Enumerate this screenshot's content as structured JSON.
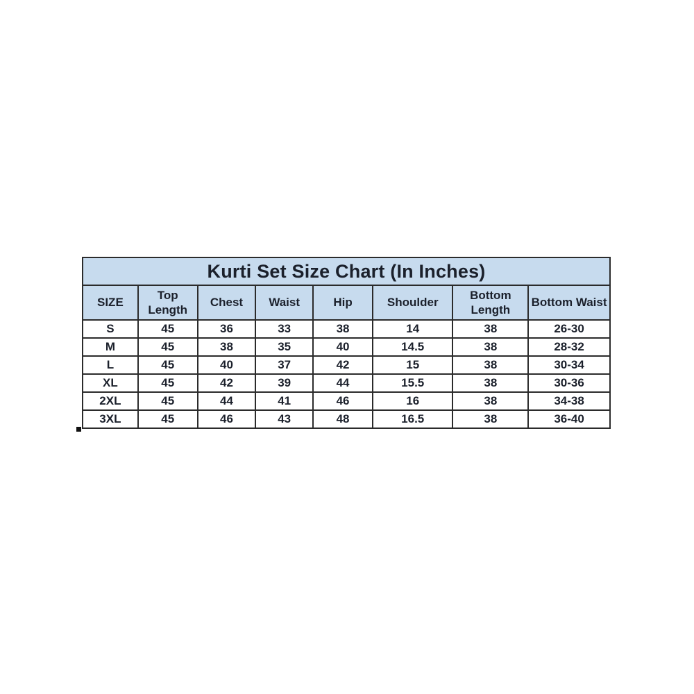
{
  "chart_data": {
    "type": "table",
    "title": "Kurti Set Size Chart (In Inches)",
    "columns": [
      "SIZE",
      "Top Length",
      "Chest",
      "Waist",
      "Hip",
      "Shoulder",
      "Bottom Length",
      "Bottom Waist"
    ],
    "rows": [
      [
        "S",
        "45",
        "36",
        "33",
        "38",
        "14",
        "38",
        "26-30"
      ],
      [
        "M",
        "45",
        "38",
        "35",
        "40",
        "14.5",
        "38",
        "28-32"
      ],
      [
        "L",
        "45",
        "40",
        "37",
        "42",
        "15",
        "38",
        "30-34"
      ],
      [
        "XL",
        "45",
        "42",
        "39",
        "44",
        "15.5",
        "38",
        "30-36"
      ],
      [
        "2XL",
        "45",
        "44",
        "41",
        "46",
        "16",
        "38",
        "34-38"
      ],
      [
        "3XL",
        "45",
        "46",
        "43",
        "48",
        "16.5",
        "38",
        "36-40"
      ]
    ],
    "layout": {
      "legend": "none",
      "grid": "full-borders",
      "units": "inches"
    },
    "colors": {
      "header_bg": "#c7dbee",
      "body_bg": "#ffffff",
      "border": "#2b2b2b",
      "text": "#1b202b",
      "page_bg": "#ffffff"
    }
  }
}
